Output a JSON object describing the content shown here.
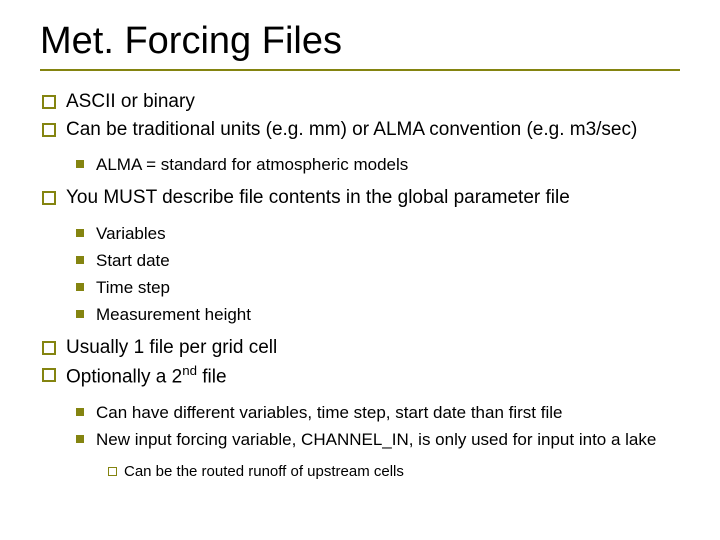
{
  "colors": {
    "accent": "#848410",
    "text": "#000000",
    "bg": "#ffffff"
  },
  "title": {
    "text": "Met. Forcing Files",
    "fontsize": 38,
    "font": "Arial"
  },
  "body_font": "Verdana",
  "bullets": {
    "b1": "ASCII or binary",
    "b2": "Can be traditional units (e.g. mm) or ALMA convention (e.g. m3/sec)",
    "b2a": "ALMA = standard for atmospheric models",
    "b3": "You MUST describe file contents in the global parameter file",
    "b3a": "Variables",
    "b3b": "Start date",
    "b3c": "Time step",
    "b3d": "Measurement height",
    "b4": "Usually 1 file per grid cell",
    "b5_pre": "Optionally a 2",
    "b5_sup": "nd",
    "b5_post": " file",
    "b5a": "Can have different variables, time step, start date than first file",
    "b5b": "New input forcing variable, CHANNEL_IN, is only used for input into a lake",
    "b5b1": "Can be the routed runoff of upstream cells"
  }
}
